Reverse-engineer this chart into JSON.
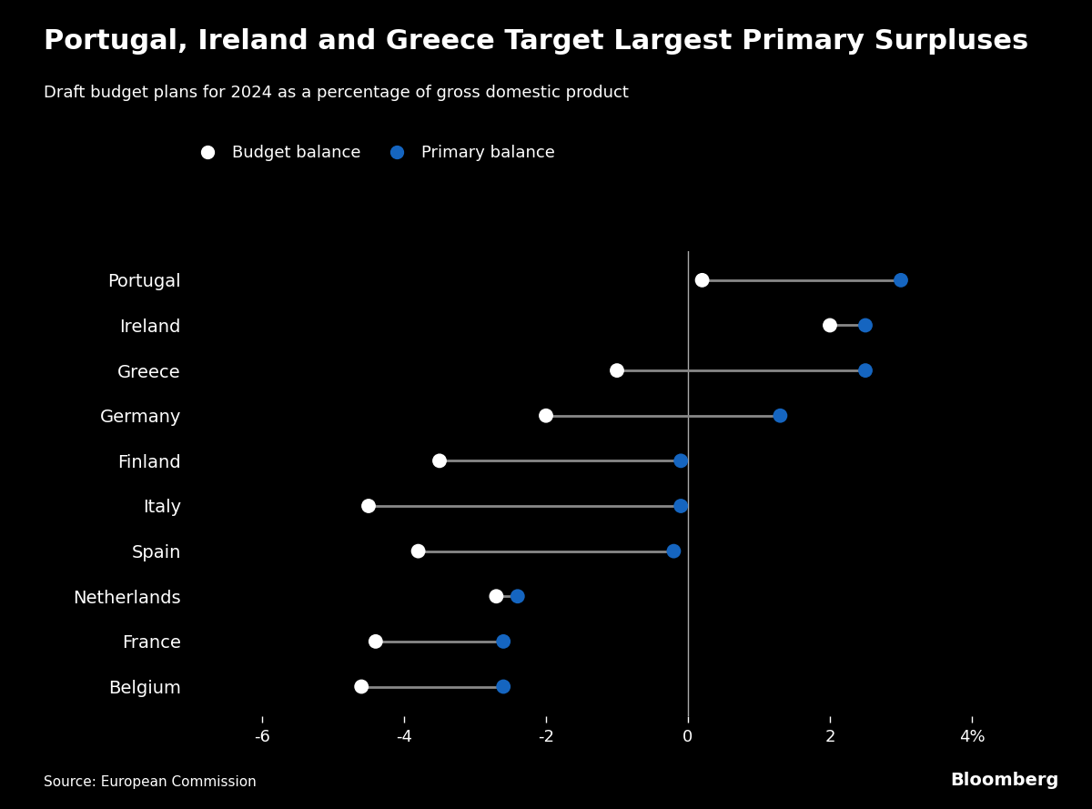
{
  "title": "Portugal, Ireland and Greece Target Largest Primary Surpluses",
  "subtitle": "Draft budget plans for 2024 as a percentage of gross domestic product",
  "countries": [
    "Portugal",
    "Ireland",
    "Greece",
    "Germany",
    "Finland",
    "Italy",
    "Spain",
    "Netherlands",
    "France",
    "Belgium"
  ],
  "budget_balance": [
    0.2,
    2.0,
    -1.0,
    -2.0,
    -3.5,
    -4.5,
    -3.8,
    -2.7,
    -4.4,
    -4.6
  ],
  "primary_balance": [
    3.0,
    2.5,
    2.5,
    1.3,
    -0.1,
    -0.1,
    -0.2,
    -2.4,
    -2.6,
    -2.6
  ],
  "xlim": [
    -7.0,
    5.0
  ],
  "xticks": [
    -6,
    -4,
    -2,
    0,
    2,
    4
  ],
  "xticklabels": [
    "-6",
    "-4",
    "-2",
    "0",
    "2",
    "4%"
  ],
  "background_color": "#000000",
  "text_color": "#ffffff",
  "budget_dot_color": "#ffffff",
  "primary_dot_color": "#1565C0",
  "line_color": "#888888",
  "source_text": "Source: European Commission",
  "bloomberg_text": "Bloomberg",
  "legend_budget": "Budget balance",
  "legend_primary": "Primary balance",
  "dot_size": 130,
  "line_width": 2.0,
  "title_fontsize": 22,
  "subtitle_fontsize": 13,
  "label_fontsize": 14,
  "tick_fontsize": 13,
  "legend_fontsize": 13
}
